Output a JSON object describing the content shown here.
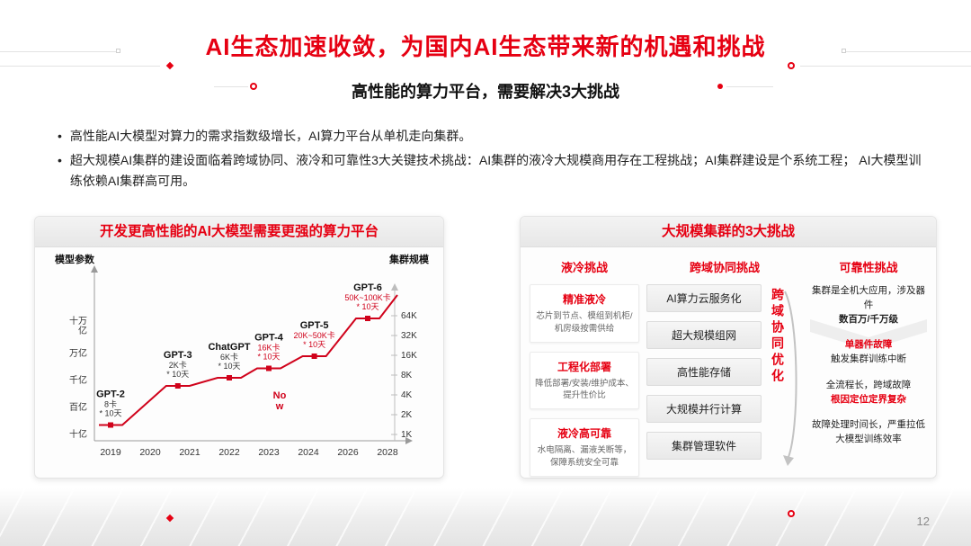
{
  "slide": {
    "title": "AI生态加速收敛，为国内AI生态带来新的机遇和挑战",
    "subtitle": "高性能的算力平台，需要解决3大挑战",
    "bullets": [
      "高性能AI大模型对算力的需求指数级增长，AI算力平台从单机走向集群。",
      "超大规模AI集群的建设面临着跨域协同、液冷和可靠性3大关键技术挑战：AI集群的液冷大规模商用存在工程挑战；AI集群建设是个系统工程； AI大模型训练依赖AI集群高可用。"
    ],
    "page_number": "12"
  },
  "left_panel": {
    "title": "开发更高性能的AI大模型需要更强的算力平台"
  },
  "chart_data": {
    "type": "line",
    "title": "开发更高性能的AI大模型需要更强的算力平台",
    "ylabel_left": "模型参数",
    "ylabel_right": "集群规模",
    "x_ticks": [
      "2019",
      "2020",
      "2021",
      "2022",
      "2023",
      "2024",
      "2026",
      "2028"
    ],
    "y_ticks_left": [
      "十万亿",
      "万亿",
      "千亿",
      "百亿",
      "十亿"
    ],
    "y_ticks_right": [
      "64K",
      "32K",
      "16K",
      "8K",
      "4K",
      "2K",
      "1K"
    ],
    "now_label": "Now",
    "accent_color": "#d0021b",
    "series": [
      {
        "name": "GPT-2",
        "label": "8卡\n* 10天",
        "year": 2019,
        "level": 0.35,
        "highlight": false
      },
      {
        "name": "GPT-3",
        "label": "2K卡\n* 10天",
        "year": 2020.7,
        "level": 1.8,
        "highlight": false
      },
      {
        "name": "ChatGPT",
        "label": "6K卡\n* 10天",
        "year": 2022,
        "level": 2.1,
        "highlight": false
      },
      {
        "name": "GPT-4",
        "label": "16K卡\n* 10天",
        "year": 2023,
        "level": 2.45,
        "highlight": true
      },
      {
        "name": "GPT-5",
        "label": "20K~50K卡\n* 10天",
        "year": 2024.3,
        "level": 2.9,
        "highlight": true
      },
      {
        "name": "GPT-6",
        "label": "50K~100K卡\n* 10天",
        "year": 2027,
        "level": 4.3,
        "highlight": true
      }
    ]
  },
  "right_panel": {
    "title": "大规模集群的3大挑战",
    "cooling": {
      "header": "液冷挑战",
      "items": [
        {
          "title": "精准液冷",
          "desc": "芯片到节点、模组到机柜/机房级按需供给"
        },
        {
          "title": "工程化部署",
          "desc": "降低部署/安装/维护成本、提升性价比"
        },
        {
          "title": "液冷高可靠",
          "desc": "水电隔离、漏液关断等，保障系统安全可靠"
        }
      ]
    },
    "cross_domain": {
      "header": "跨域协同挑战",
      "boxes": [
        "AI算力云服务化",
        "超大规模组网",
        "高性能存储",
        "大规模并行计算",
        "集群管理软件"
      ],
      "vertical_label": "跨域协同优化"
    },
    "reliability": {
      "header": "可靠性挑战",
      "blocks": [
        {
          "line1": "集群是全机大应用，涉及器件",
          "line2": "数百万/千万级"
        },
        {
          "line1": "单器件故障",
          "line2": "触发集群训练中断"
        },
        {
          "line1": "全流程长，跨域故障",
          "line2": "根因定位定界复杂"
        },
        {
          "line1": "故障处理时间长，严重拉低大模型训练效率"
        }
      ]
    }
  }
}
